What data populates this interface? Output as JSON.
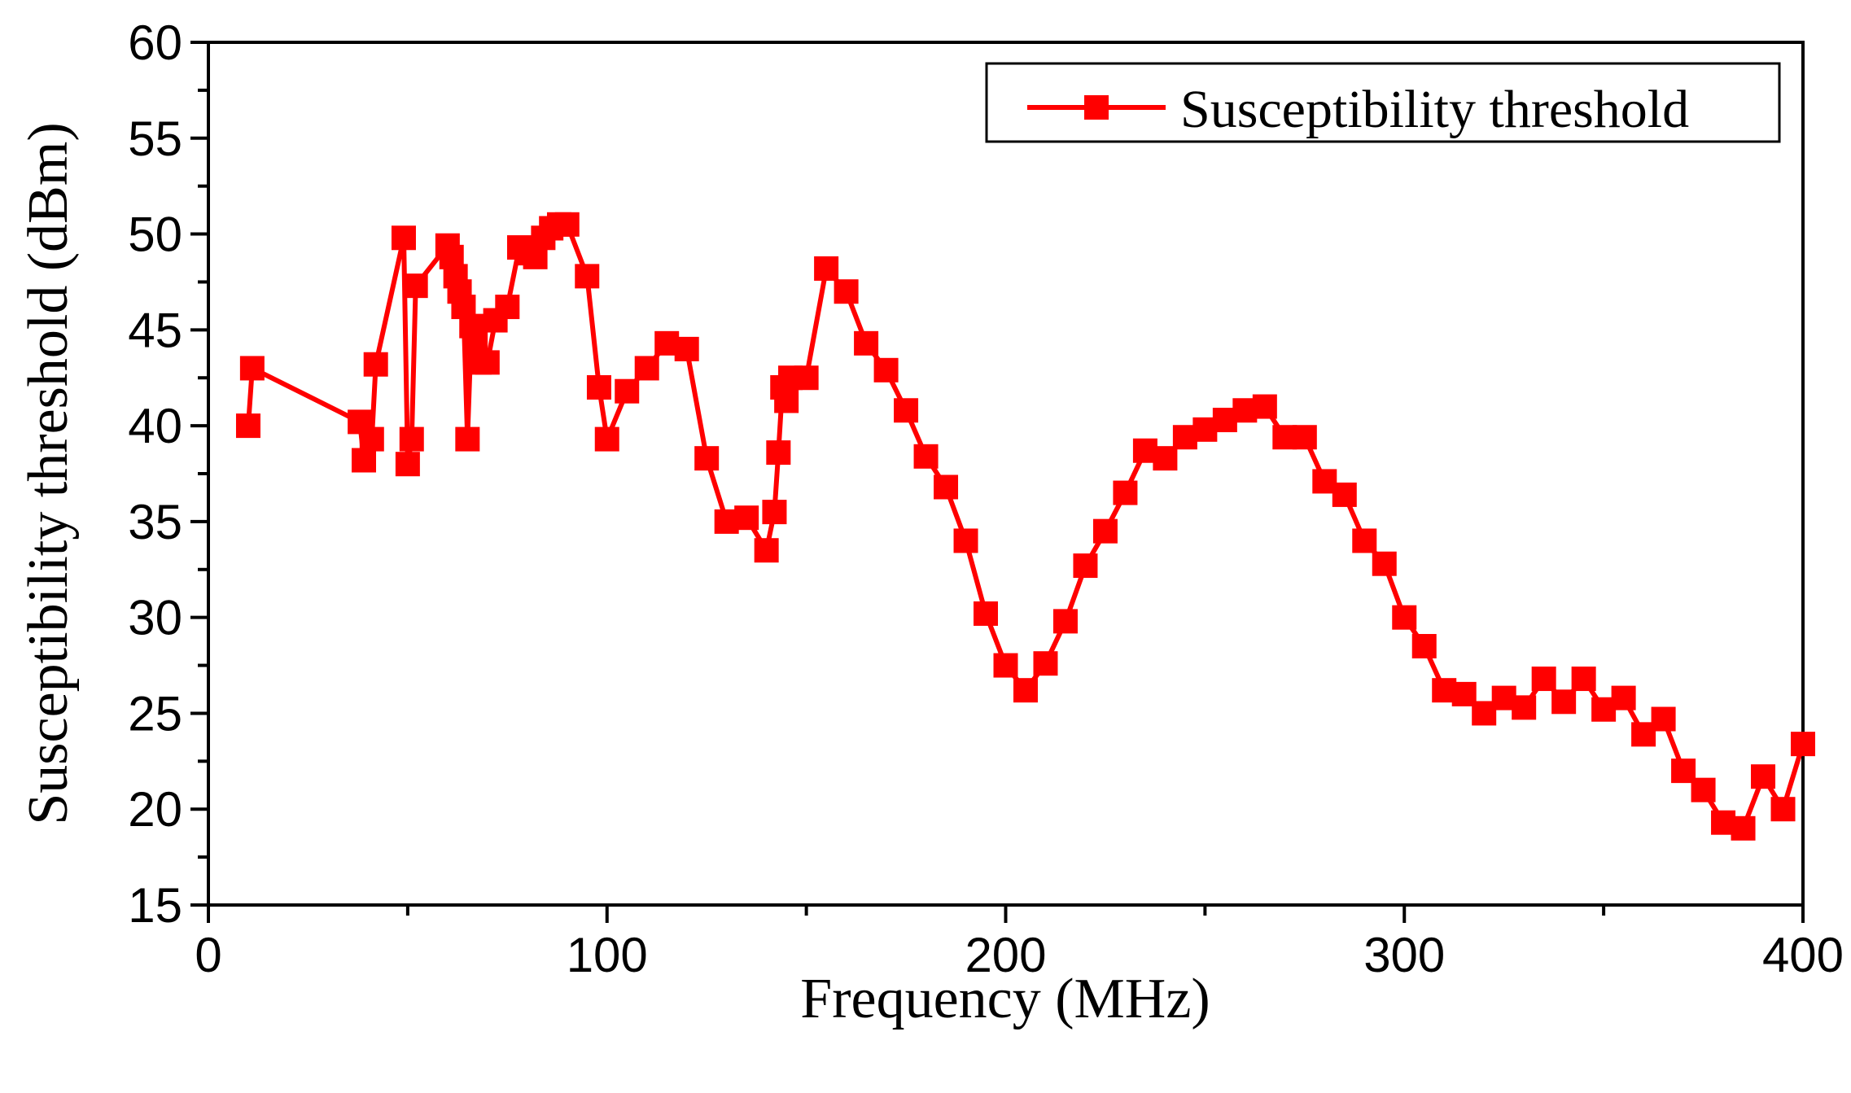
{
  "chart_data": {
    "type": "line",
    "title": "",
    "xlabel": "Frequency (MHz)",
    "ylabel": "Susceptibility threshold (dBm)",
    "xlim": [
      0,
      400
    ],
    "ylim": [
      15,
      60
    ],
    "xticks": [
      0,
      100,
      200,
      300,
      400
    ],
    "xtick_labels": [
      "0",
      "100",
      "200",
      "300",
      "400"
    ],
    "yticks": [
      15,
      20,
      25,
      30,
      35,
      40,
      45,
      50,
      55,
      60
    ],
    "ytick_labels": [
      "15",
      "20",
      "25",
      "30",
      "35",
      "40",
      "45",
      "50",
      "55",
      "60"
    ],
    "grid": false,
    "legend_position": "top-right",
    "series": [
      {
        "name": "Susceptibility threshold",
        "color": "#ff0000",
        "marker": "square",
        "x": [
          10,
          11,
          38,
          39,
          41,
          42,
          49,
          50,
          51,
          52,
          60,
          61,
          62,
          63,
          64,
          65,
          66,
          67,
          68,
          70,
          72,
          75,
          78,
          80,
          82,
          84,
          86,
          88,
          90,
          95,
          98,
          100,
          105,
          110,
          115,
          120,
          125,
          130,
          135,
          140,
          142,
          143,
          144,
          145,
          146,
          150,
          155,
          160,
          165,
          170,
          175,
          180,
          185,
          190,
          195,
          200,
          205,
          210,
          215,
          220,
          225,
          230,
          235,
          240,
          245,
          250,
          255,
          260,
          265,
          270,
          275,
          280,
          285,
          290,
          295,
          300,
          305,
          310,
          315,
          320,
          325,
          330,
          335,
          340,
          345,
          350,
          355,
          360,
          365,
          370,
          375,
          380,
          385,
          390,
          395,
          400
        ],
        "y": [
          40.0,
          43.0,
          40.2,
          38.2,
          39.3,
          43.2,
          49.8,
          38.0,
          39.3,
          47.3,
          49.4,
          48.8,
          47.8,
          47.0,
          46.2,
          39.3,
          45.2,
          44.3,
          43.3,
          43.3,
          45.5,
          46.2,
          49.3,
          49.0,
          48.8,
          49.8,
          50.3,
          50.5,
          50.5,
          47.8,
          42.0,
          39.3,
          41.8,
          43.0,
          44.3,
          44.0,
          38.3,
          35.0,
          35.2,
          33.5,
          35.5,
          38.6,
          42.0,
          41.3,
          42.5,
          42.5,
          48.2,
          47.0,
          44.3,
          42.9,
          40.8,
          38.4,
          36.8,
          34.0,
          30.2,
          27.5,
          26.2,
          27.6,
          29.8,
          32.7,
          34.5,
          36.5,
          38.7,
          38.3,
          39.4,
          39.8,
          40.3,
          40.8,
          41.0,
          39.4,
          39.4,
          37.1,
          36.4,
          34.0,
          32.8,
          30.0,
          28.5,
          26.2,
          26.0,
          25.0,
          25.8,
          25.3,
          26.8,
          25.6,
          26.8,
          25.2,
          25.8,
          23.9,
          24.7,
          22.0,
          21.0,
          19.3,
          19.0,
          21.7,
          20.0,
          23.4
        ]
      }
    ]
  }
}
